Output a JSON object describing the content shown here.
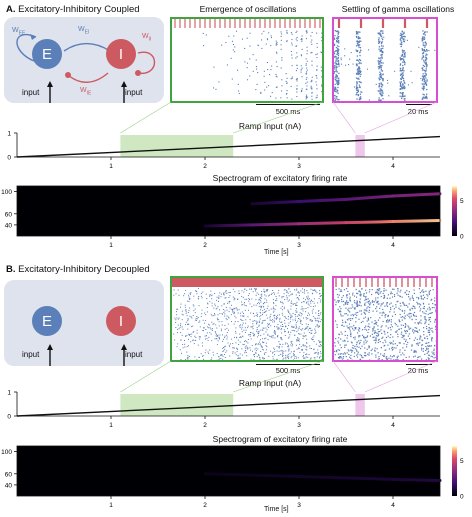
{
  "panel_a": {
    "letter": "A.",
    "title": "Excitatory-Inhibitory Coupled",
    "nodes": {
      "e": "E",
      "i": "I"
    },
    "input_label": "input",
    "weights": {
      "ee": "W",
      "ee_sub": "EE",
      "ei": "W",
      "ei_sub": "EI",
      "ie": "W",
      "ie_sub": "IE",
      "ii": "W",
      "ii_sub": "II"
    },
    "raster_left_title": "Emergence of oscillations",
    "raster_left_scale": "500 ms",
    "raster_right_title": "Settling of gamma oscillations",
    "raster_right_scale": "20 ms",
    "ramp_title": "Ramp Input (nA)",
    "ramp_yticks": [
      "0",
      "1"
    ],
    "spec_title": "Spectrogram of excitatory firing rate",
    "spec_yticks": [
      "40",
      "60",
      "100"
    ],
    "cbar_ticks": [
      "0",
      "5"
    ],
    "xticks": [
      "1",
      "2",
      "3",
      "4"
    ],
    "xlabel": "Time [s]"
  },
  "panel_b": {
    "letter": "B.",
    "title": "Excitatory-Inhibitory Decoupled",
    "nodes": {
      "e": "E",
      "i": "I"
    },
    "input_label": "input",
    "raster_left_scale": "500 ms",
    "raster_right_scale": "20 ms",
    "ramp_title": "Ramp Input (nA)",
    "ramp_yticks": [
      "0",
      "1"
    ],
    "spec_title": "Spectrogram of excitatory firing rate",
    "spec_yticks": [
      "40",
      "60",
      "100"
    ],
    "cbar_ticks": [
      "0",
      "5"
    ],
    "xticks": [
      "1",
      "2",
      "3",
      "4"
    ],
    "xlabel": "Time [s]"
  },
  "colors": {
    "excitatory": "#5b7fb8",
    "inhibitory": "#cc5a60",
    "raster_left_frame": "#3fa33f",
    "raster_right_frame": "#d54fd0",
    "highlight_green": "#cfe8c2",
    "highlight_pink": "#efc6ec",
    "diagram_bg": "#dfe3ee"
  },
  "chart_data": [
    {
      "type": "line",
      "title": "Ramp Input (nA)",
      "x": [
        0,
        4.5
      ],
      "y": [
        0,
        0.85
      ],
      "xlim": [
        0,
        4.5
      ],
      "ylim": [
        0,
        1
      ],
      "highlight_green": [
        1.1,
        2.3
      ],
      "highlight_pink": [
        3.6,
        3.7
      ]
    },
    {
      "type": "heatmap",
      "title": "Spectrogram of excitatory firing rate",
      "xlabel": "Time [s]",
      "xlim": [
        0,
        4.5
      ],
      "ylim": [
        20,
        110
      ],
      "colorbar": [
        0,
        7
      ],
      "ridges": [
        {
          "t": [
            2.0,
            2.5,
            3.0,
            3.5,
            4.0,
            4.5
          ],
          "f": [
            38,
            40,
            42,
            44,
            46,
            48
          ],
          "intensity": [
            0.1,
            0.35,
            0.55,
            0.7,
            0.85,
            0.95
          ]
        },
        {
          "t": [
            2.5,
            3.0,
            3.5,
            4.0,
            4.5
          ],
          "f": [
            78,
            82,
            86,
            92,
            96
          ],
          "intensity": [
            0.1,
            0.25,
            0.35,
            0.45,
            0.5
          ]
        }
      ]
    },
    {
      "type": "line",
      "title": "Ramp Input (nA)",
      "x": [
        0,
        4.5
      ],
      "y": [
        0,
        0.85
      ],
      "xlim": [
        0,
        4.5
      ],
      "ylim": [
        0,
        1
      ],
      "highlight_green": [
        1.1,
        2.3
      ],
      "highlight_pink": [
        3.6,
        3.7
      ]
    },
    {
      "type": "heatmap",
      "title": "Spectrogram of excitatory firing rate",
      "xlabel": "Time [s]",
      "xlim": [
        0,
        4.5
      ],
      "ylim": [
        20,
        110
      ],
      "colorbar": [
        0,
        7
      ],
      "ridges": [
        {
          "t": [
            2.0,
            3.0,
            4.0,
            4.5
          ],
          "f": [
            60,
            55,
            50,
            48
          ],
          "intensity": [
            0.05,
            0.08,
            0.12,
            0.15
          ]
        }
      ]
    }
  ]
}
